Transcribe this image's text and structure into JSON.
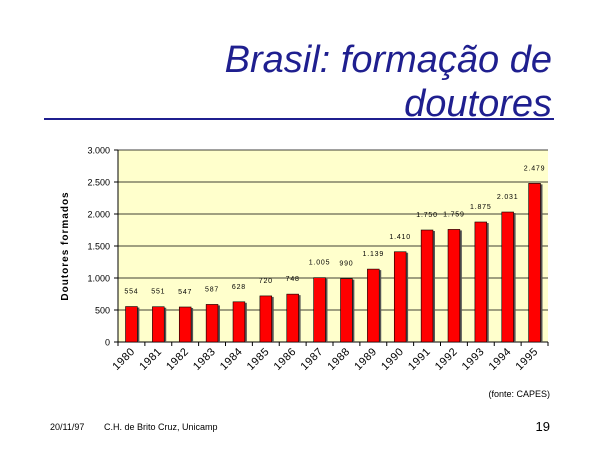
{
  "slide": {
    "title": "Brasil: formação de doutores",
    "source_note": "(fonte: CAPES)",
    "footer_date": "20/11/97",
    "footer_author": "C.H. de Brito Cruz, Unicamp",
    "page_number": "19"
  },
  "colors": {
    "title": "#1f1f8f",
    "bar": "#ff0000",
    "plot_bg": "#ffffcc"
  },
  "chart_data": {
    "type": "bar",
    "categories": [
      "1980",
      "1981",
      "1982",
      "1983",
      "1984",
      "1985",
      "1986",
      "1987",
      "1988",
      "1989",
      "1990",
      "1991",
      "1992",
      "1993",
      "1994",
      "1995"
    ],
    "values": [
      554,
      551,
      547,
      587,
      628,
      720,
      748,
      1005,
      990,
      1139,
      1410,
      1750,
      1759,
      1875,
      2031,
      2479
    ],
    "value_labels": [
      "554",
      "551",
      "547",
      "587",
      "628",
      "720",
      "748",
      "1.005",
      "990",
      "1.139",
      "1.410",
      "1.750",
      "1.759",
      "1.875",
      "2.031",
      "2.479"
    ],
    "ylabel": "Doutores formados",
    "xlabel": "",
    "ylim": [
      0,
      3000
    ],
    "yticks": [
      0,
      500,
      1000,
      1500,
      2000,
      2500,
      3000
    ],
    "ytick_labels": [
      "0",
      "500",
      "1.000",
      "1.500",
      "2.000",
      "2.500",
      "3.000"
    ],
    "grid": true,
    "legend": "none"
  }
}
